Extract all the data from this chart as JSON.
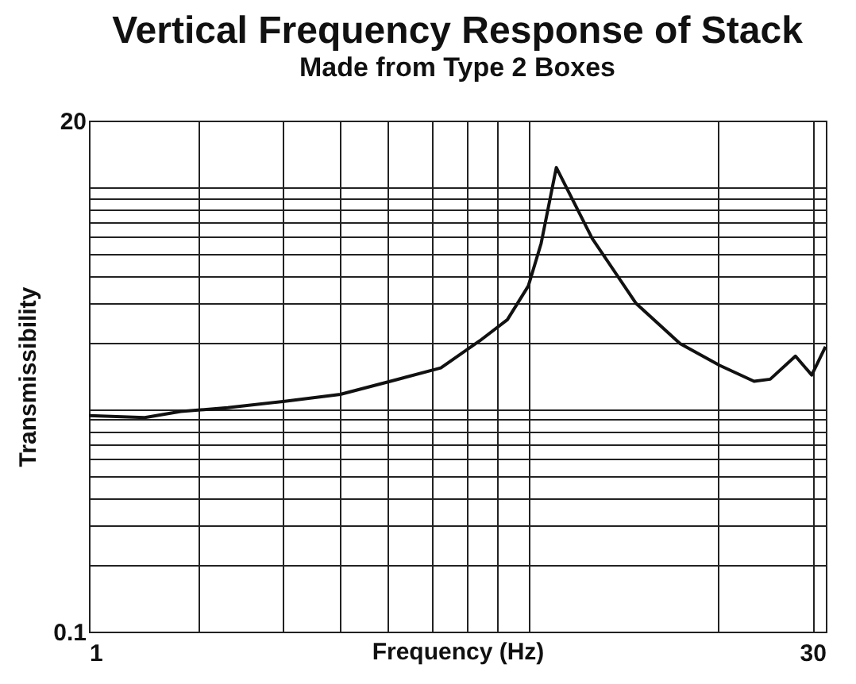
{
  "chart_data": {
    "type": "line",
    "title": "Vertical Frequency Response of Stack",
    "subtitle": "Made from Type 2 Boxes",
    "xlabel": "Frequency (Hz)",
    "ylabel": "Transmissibility",
    "x": [
      1,
      1.3,
      1.54,
      1.92,
      2.51,
      3.26,
      4.23,
      5.23,
      6.28,
      7.15,
      7.89,
      8.38,
      9.0,
      10.65,
      13.1,
      16.1,
      19.4,
      22.8,
      24.6,
      27.7,
      29.9,
      31.9
    ],
    "series": [
      {
        "color": "#111111",
        "values": [
          0.94,
          0.92,
          0.98,
          1.02,
          1.09,
          1.17,
          1.36,
          1.54,
          2.04,
          2.54,
          3.6,
          5.6,
          12.3,
          5.9,
          3.0,
          1.98,
          1.58,
          1.34,
          1.37,
          1.74,
          1.43,
          1.92
        ]
      }
    ],
    "xlim": [
      1,
      31.95
    ],
    "ylim": [
      0.1,
      20
    ],
    "xticks": [
      1,
      {
        "value": 1.68,
        "label": null
      },
      {
        "value": 2.49,
        "label": null
      },
      {
        "value": 3.26,
        "label": null
      },
      {
        "value": 4.07,
        "label": null
      },
      {
        "value": 5,
        "label": null
      },
      {
        "value": 5.9,
        "label": null
      },
      {
        "value": 6.83,
        "label": null
      },
      {
        "value": 7.89,
        "label": null
      },
      {
        "value": 19.2,
        "label": null
      },
      30
    ],
    "yticks": [
      0.1,
      {
        "value": 0.2,
        "label": null
      },
      {
        "value": 0.3,
        "label": null
      },
      {
        "value": 0.4,
        "label": null
      },
      {
        "value": 0.5,
        "label": null
      },
      {
        "value": 0.6,
        "label": null
      },
      {
        "value": 0.7,
        "label": null
      },
      {
        "value": 0.8,
        "label": null
      },
      {
        "value": 0.9,
        "label": null
      },
      {
        "value": 1,
        "label": null
      },
      {
        "value": 2,
        "label": null
      },
      {
        "value": 3,
        "label": null
      },
      {
        "value": 4,
        "label": null
      },
      {
        "value": 5,
        "label": null
      },
      {
        "value": 6,
        "label": null
      },
      {
        "value": 7,
        "label": null
      },
      {
        "value": 8,
        "label": null
      },
      {
        "value": 9,
        "label": null
      },
      {
        "value": 10,
        "label": null
      },
      20
    ],
    "log": "xy",
    "grid": true,
    "line_style": "solid",
    "marker": "none"
  }
}
